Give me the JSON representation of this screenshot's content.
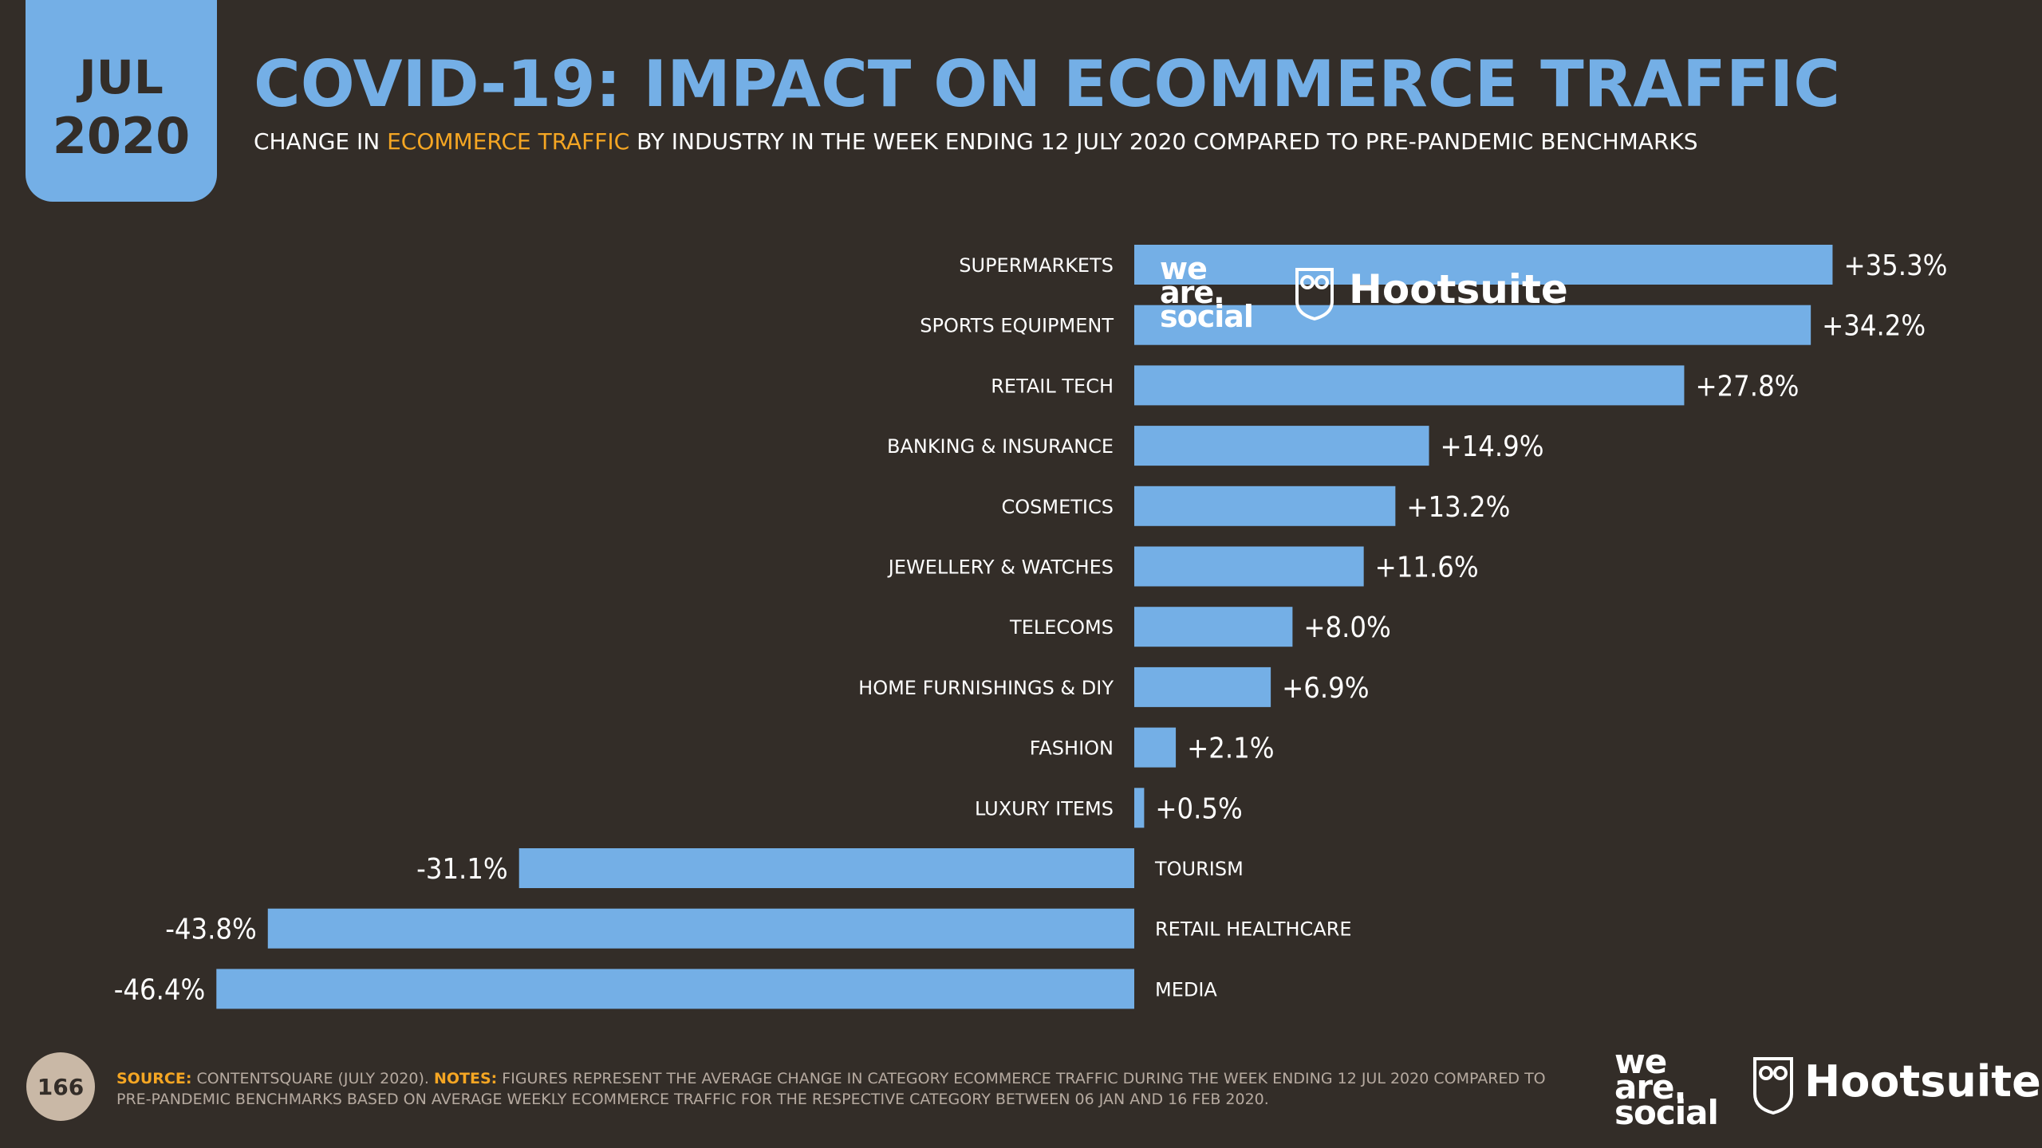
{
  "header": {
    "month": "JUL",
    "year": "2020",
    "title": "COVID-19: IMPACT ON ECOMMERCE TRAFFIC",
    "subtitle_before": "CHANGE IN ",
    "subtitle_highlight": "ECOMMERCE TRAFFIC",
    "subtitle_after": " BY INDUSTRY IN THE WEEK ENDING 12 JULY 2020 COMPARED TO PRE-PANDEMIC BENCHMARKS"
  },
  "chart_data": {
    "type": "bar",
    "orientation": "horizontal",
    "title": "CHANGE IN ECOMMERCE TRAFFIC BY INDUSTRY IN THE WEEK ENDING 12 JULY 2020 COMPARED TO PRE-PANDEMIC BENCHMARKS",
    "categories": [
      "SUPERMARKETS",
      "SPORTS EQUIPMENT",
      "RETAIL TECH",
      "BANKING & INSURANCE",
      "COSMETICS",
      "JEWELLERY & WATCHES",
      "TELECOMS",
      "HOME FURNISHINGS & DIY",
      "FASHION",
      "LUXURY ITEMS",
      "TOURISM",
      "RETAIL HEALTHCARE",
      "MEDIA"
    ],
    "values": [
      35.3,
      34.2,
      27.8,
      14.9,
      13.2,
      11.6,
      8.0,
      6.9,
      2.1,
      0.5,
      -31.1,
      -43.8,
      -46.4
    ],
    "value_labels": [
      "+35.3%",
      "+34.2%",
      "+27.8%",
      "+14.9%",
      "+13.2%",
      "+11.6%",
      "+8.0%",
      "+6.9%",
      "+2.1%",
      "+0.5%",
      "-31.1%",
      "-43.8%",
      "-46.4%"
    ],
    "unit": "%",
    "xlim": [
      -46.4,
      35.3
    ],
    "bar_color": "#74afe6",
    "grid": false,
    "legend": "none"
  },
  "watermark": {
    "was_line1": "we",
    "was_line2": "are.",
    "was_line3": "social",
    "hootsuite": "Hootsuite"
  },
  "footer": {
    "page_number": "166",
    "source_label": "SOURCE:",
    "source_text": " CONTENTSQUARE (JULY 2020). ",
    "notes_label": "NOTES:",
    "notes_text": " FIGURES REPRESENT THE AVERAGE CHANGE IN CATEGORY ECOMMERCE TRAFFIC DURING THE WEEK ENDING 12 JUL 2020 COMPARED TO PRE-PANDEMIC BENCHMARKS BASED ON AVERAGE WEEKLY ECOMMERCE TRAFFIC FOR THE RESPECTIVE CATEGORY BETWEEN 06 JAN AND 16 FEB 2020.",
    "logo_was_line1": "we",
    "logo_was_line2": "are.",
    "logo_was_line3": "social",
    "logo_hootsuite": "Hootsuite"
  },
  "colors": {
    "background": "#332d28",
    "accent_blue": "#74afe6",
    "highlight_orange": "#f5a623"
  }
}
